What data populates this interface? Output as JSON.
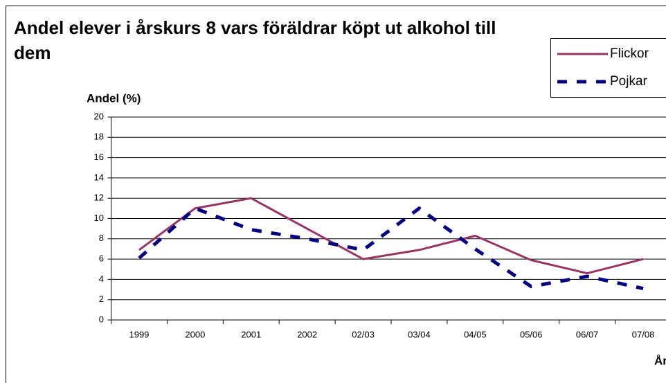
{
  "chart_data": {
    "type": "line",
    "title": "Andel elever i årskurs 8 vars föräldrar köpt ut alkohol till dem",
    "y_label": "Andel (%)",
    "x_label": "År",
    "categories": [
      "1999",
      "2000",
      "2001",
      "2002",
      "02/03",
      "03/04",
      "04/05",
      "05/06",
      "06/07",
      "07/08"
    ],
    "series": [
      {
        "name": "Flickor",
        "color": "#993366",
        "dashed": false,
        "values": [
          6.9,
          11.0,
          12.0,
          9.0,
          6.0,
          6.9,
          8.3,
          5.9,
          4.6,
          6.0
        ]
      },
      {
        "name": "Pojkar",
        "color": "#000080",
        "dashed": true,
        "values": [
          6.1,
          11.0,
          8.9,
          8.0,
          6.9,
          11.0,
          7.0,
          3.3,
          4.3,
          3.1
        ]
      }
    ],
    "ylim": [
      0,
      20
    ],
    "yticks": [
      0,
      2,
      4,
      6,
      8,
      10,
      12,
      14,
      16,
      18,
      20
    ],
    "grid": true,
    "legend": "top-right"
  }
}
